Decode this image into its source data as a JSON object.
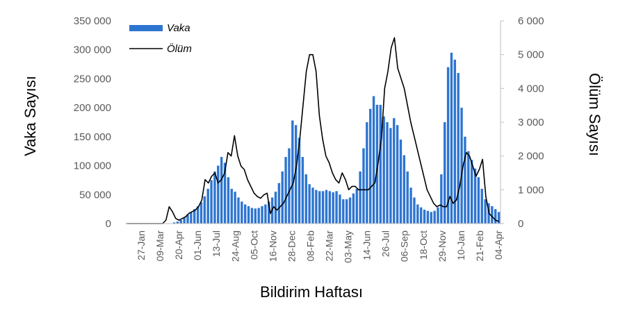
{
  "chart_data": {
    "type": "bar+line",
    "xlabel": "Bildirim Haftası",
    "ylabel_left": "Vaka Sayısı",
    "ylabel_right": "Ölüm Sayısı",
    "ylim_left": [
      0,
      350000
    ],
    "ylim_right": [
      0,
      6000
    ],
    "yticks_left": [
      "0",
      "50 000",
      "100 000",
      "150 000",
      "200 000",
      "250 000",
      "300 000",
      "350 000"
    ],
    "yticks_right": [
      "0",
      "1 000",
      "2 000",
      "3 000",
      "4 000",
      "5 000",
      "6 000"
    ],
    "xtick_labels": [
      "27-Jan",
      "09-Mar",
      "20-Apr",
      "01-Jun",
      "13-Jul",
      "24-Aug",
      "05-Oct",
      "16-Nov",
      "28-Dec",
      "08-Feb",
      "22-Mar",
      "03-May",
      "14-Jun",
      "26-Jul",
      "06-Sep",
      "18-Oct",
      "29-Nov",
      "10-Jan",
      "21-Feb",
      "04-Apr"
    ],
    "legend": "top-left",
    "grid": false,
    "colors": {
      "bars": "#2e75d0",
      "line": "#000000",
      "axis": "#bfbfbf"
    },
    "series": [
      {
        "name": "Vaka",
        "type": "bar",
        "values": [
          0,
          0,
          0,
          0,
          0,
          0,
          0,
          0,
          0,
          0,
          0,
          0,
          0,
          0,
          2000,
          3500,
          6000,
          10000,
          15000,
          20000,
          25000,
          30000,
          37000,
          47000,
          60000,
          75000,
          90000,
          100000,
          115000,
          105000,
          80000,
          60000,
          55000,
          45000,
          38000,
          33000,
          30000,
          27000,
          26000,
          27000,
          30000,
          33000,
          38000,
          45000,
          55000,
          70000,
          90000,
          115000,
          130000,
          178000,
          170000,
          148000,
          115000,
          85000,
          68000,
          62000,
          58000,
          56000,
          56000,
          58000,
          56000,
          54000,
          56000,
          50000,
          42000,
          42000,
          45000,
          52000,
          60000,
          90000,
          130000,
          175000,
          198000,
          220000,
          205000,
          205000,
          185000,
          175000,
          165000,
          182000,
          170000,
          145000,
          118000,
          90000,
          62000,
          45000,
          33000,
          28000,
          24000,
          22000,
          20000,
          22000,
          28000,
          85000,
          175000,
          270000,
          295000,
          283000,
          260000,
          200000,
          150000,
          125000,
          110000,
          95000,
          80000,
          60000,
          42000,
          35000,
          30000,
          25000,
          20000
        ]
      },
      {
        "name": "Ölüm",
        "type": "line",
        "values": [
          0,
          0,
          0,
          0,
          0,
          0,
          0,
          0,
          0,
          0,
          0,
          0,
          100,
          500,
          350,
          150,
          100,
          150,
          200,
          300,
          350,
          400,
          500,
          700,
          1300,
          1200,
          1400,
          1500,
          1200,
          1300,
          1500,
          2100,
          2000,
          2600,
          2000,
          1700,
          1600,
          1300,
          1100,
          900,
          800,
          750,
          850,
          900,
          300,
          500,
          400,
          500,
          600,
          800,
          1000,
          1200,
          1700,
          2500,
          3500,
          4500,
          5000,
          5000,
          4500,
          3200,
          2500,
          2000,
          1800,
          1500,
          1300,
          1200,
          1500,
          1300,
          1000,
          1100,
          1100,
          1000,
          1000,
          1000,
          1000,
          1100,
          1200,
          1800,
          2500,
          4000,
          4500,
          5200,
          5500,
          4600,
          4300,
          4000,
          3500,
          3000,
          2600,
          2200,
          1800,
          1400,
          1000,
          800,
          600,
          500,
          550,
          500,
          500,
          800,
          600,
          700,
          1100,
          1700,
          2100,
          2000,
          1700,
          1400,
          1600,
          1900,
          800,
          300,
          200,
          100,
          60
        ]
      }
    ]
  }
}
